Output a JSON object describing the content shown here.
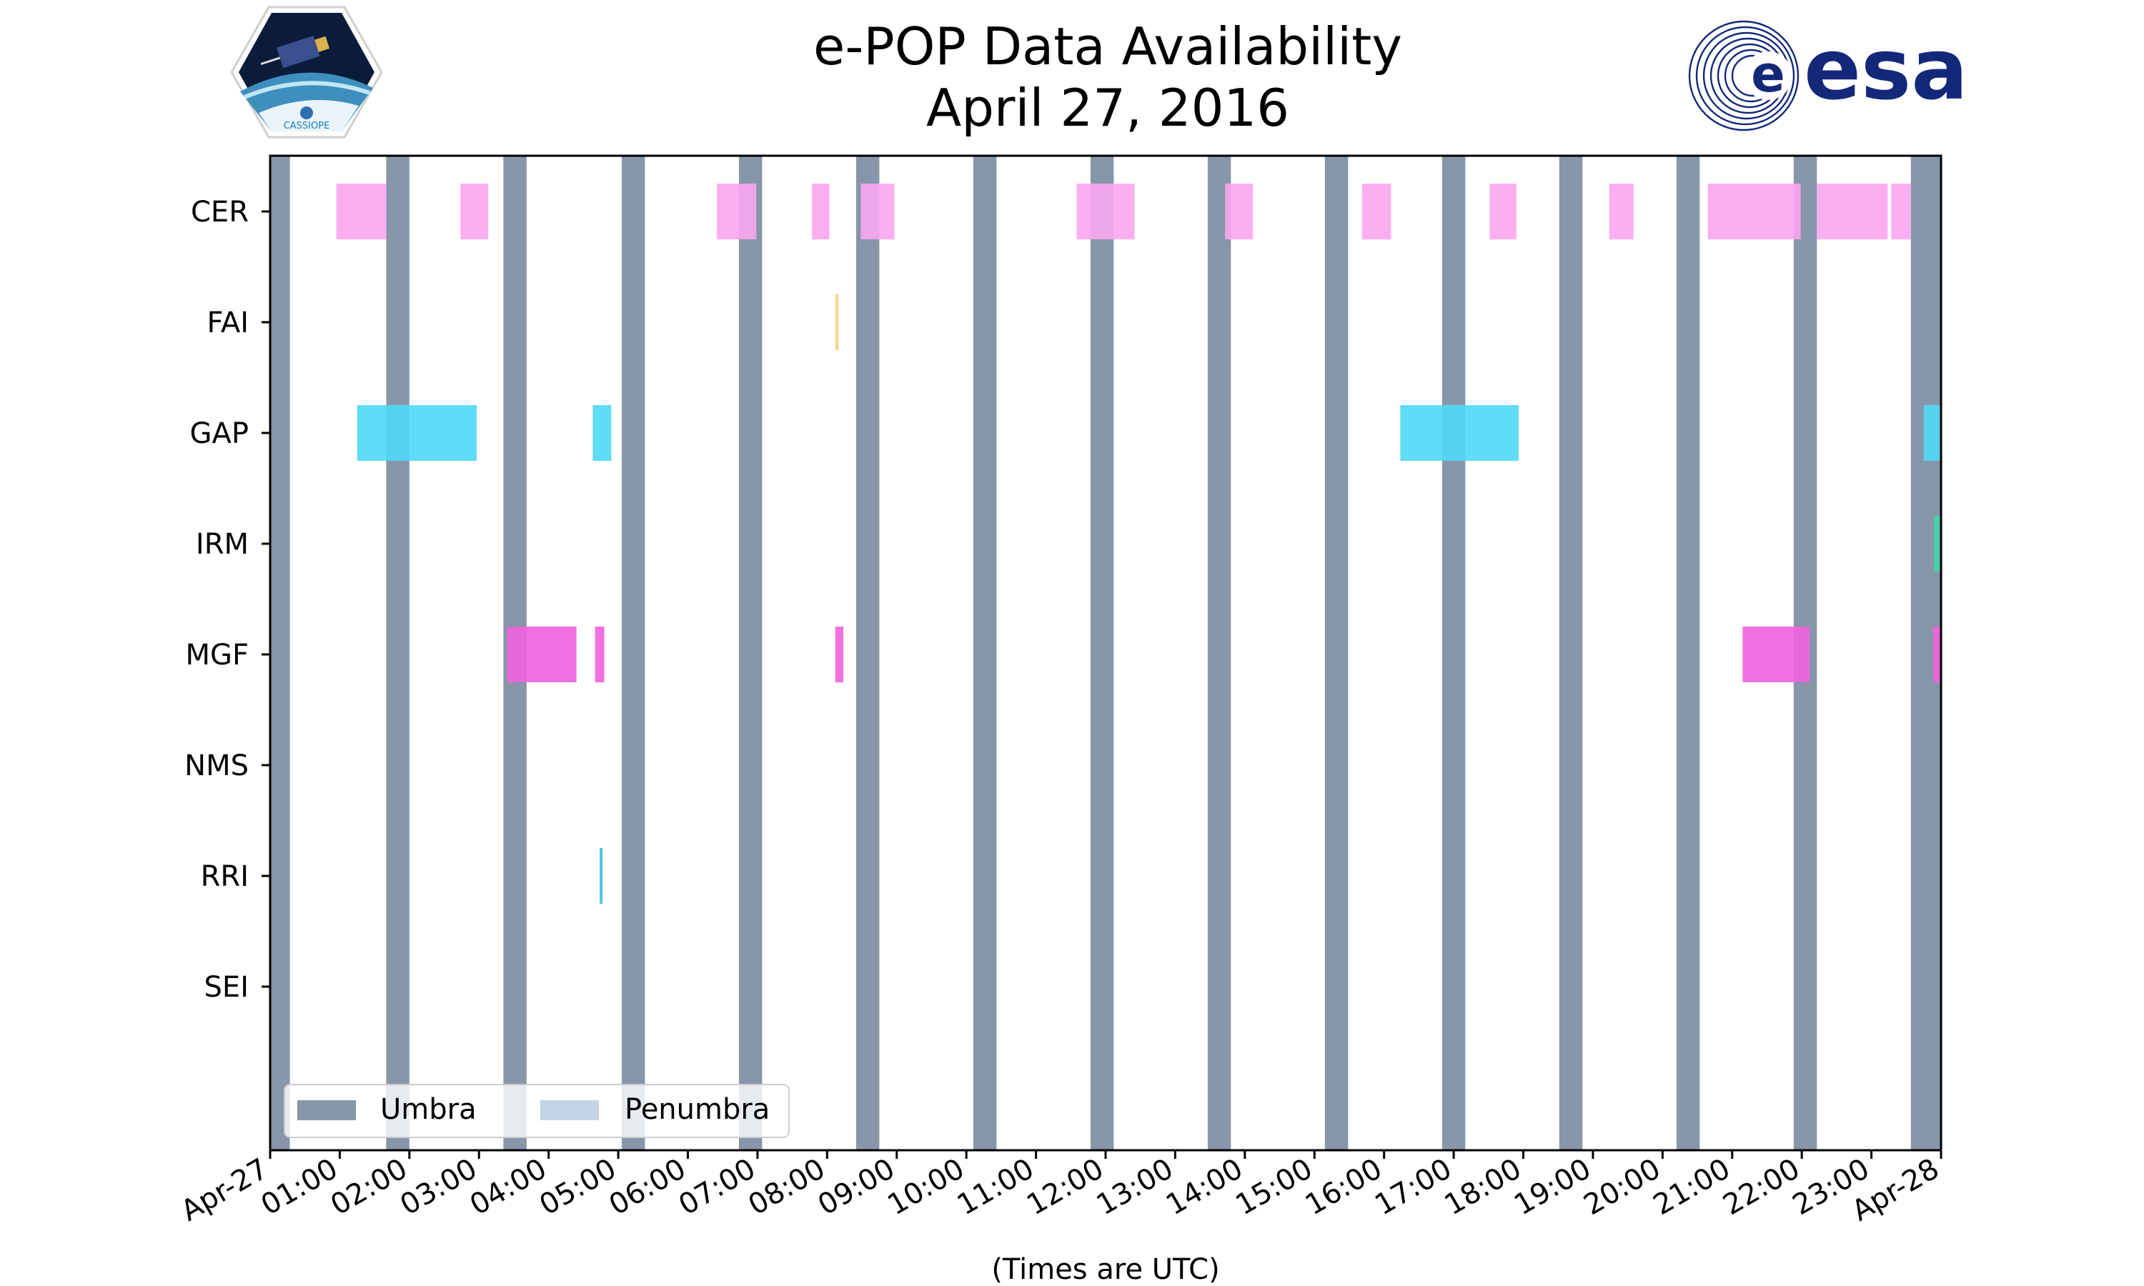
{
  "title_line1": "e-POP Data Availability",
  "title_line2": "April 27, 2016",
  "logos": {
    "left_text": "CASSIOPE",
    "right_text": "esa",
    "right_color": "#14287a"
  },
  "colors": {
    "umbra": "#8796a8",
    "penumbra": "#c5d3e6",
    "CER": "#fba6ef",
    "FAI": "#fdd08a",
    "GAP": "#4fd8f6",
    "IRM": "#3ed6a8",
    "MGF": "#ee63dd",
    "NMS": "#999999",
    "RRI": "#3bbfe6",
    "SEI": "#999999"
  },
  "chart_data": {
    "type": "timeline",
    "title": "e-POP Data Availability\nApril 27, 2016",
    "xlabel": "(Times are UTC)",
    "ylabel": "",
    "xlim": [
      "2016-04-27T00:00",
      "2016-04-28T00:00"
    ],
    "x_tick_labels": [
      "Apr-27",
      "01:00",
      "02:00",
      "03:00",
      "04:00",
      "05:00",
      "06:00",
      "07:00",
      "08:00",
      "09:00",
      "10:00",
      "11:00",
      "12:00",
      "13:00",
      "14:00",
      "15:00",
      "16:00",
      "17:00",
      "18:00",
      "19:00",
      "20:00",
      "21:00",
      "22:00",
      "23:00",
      "Apr-28"
    ],
    "instruments": [
      "CER",
      "FAI",
      "GAP",
      "IRM",
      "MGF",
      "NMS",
      "RRI",
      "SEI"
    ],
    "legend": {
      "position": "lower-left",
      "entries": [
        "Umbra",
        "Penumbra"
      ]
    },
    "umbra": [
      [
        "00:00",
        "00:17"
      ],
      [
        "01:40",
        "02:00"
      ],
      [
        "03:21",
        "03:41"
      ],
      [
        "05:03",
        "05:23"
      ],
      [
        "06:44",
        "07:04"
      ],
      [
        "08:25",
        "08:45"
      ],
      [
        "10:06",
        "10:26"
      ],
      [
        "11:47",
        "12:07"
      ],
      [
        "13:28",
        "13:48"
      ],
      [
        "15:09",
        "15:29"
      ],
      [
        "16:50",
        "17:10"
      ],
      [
        "18:31",
        "18:51"
      ],
      [
        "20:12",
        "20:32"
      ],
      [
        "21:53",
        "22:13"
      ],
      [
        "23:34",
        "24:00"
      ]
    ],
    "availability": {
      "CER": [
        [
          "00:57",
          "01:40"
        ],
        [
          "02:44",
          "03:08"
        ],
        [
          "07:47",
          "08:02"
        ],
        [
          "08:29",
          "08:58"
        ],
        [
          "11:35",
          "12:25"
        ],
        [
          "13:43",
          "14:07"
        ],
        [
          "15:41",
          "16:06"
        ],
        [
          "17:31",
          "17:54"
        ],
        [
          "19:14",
          "19:35"
        ],
        [
          "20:39",
          "21:59"
        ],
        [
          "22:13",
          "23:14"
        ],
        [
          "23:17",
          "23:34"
        ],
        [
          "06:25",
          "06:59"
        ]
      ],
      "FAI": [
        [
          "08:07",
          "08:10"
        ]
      ],
      "GAP": [
        [
          "01:15",
          "02:58"
        ],
        [
          "04:38",
          "04:54"
        ],
        [
          "16:14",
          "17:56"
        ],
        [
          "23:45",
          "24:11"
        ]
      ],
      "IRM": [
        [
          "23:54",
          "24:10"
        ]
      ],
      "MGF": [
        [
          "03:24",
          "04:24"
        ],
        [
          "04:40",
          "04:48"
        ],
        [
          "08:07",
          "08:14"
        ],
        [
          "21:09",
          "22:07"
        ],
        [
          "23:53",
          "24:09"
        ]
      ],
      "NMS": [],
      "RRI": [
        [
          "04:44",
          "04:46"
        ]
      ],
      "SEI": []
    }
  }
}
